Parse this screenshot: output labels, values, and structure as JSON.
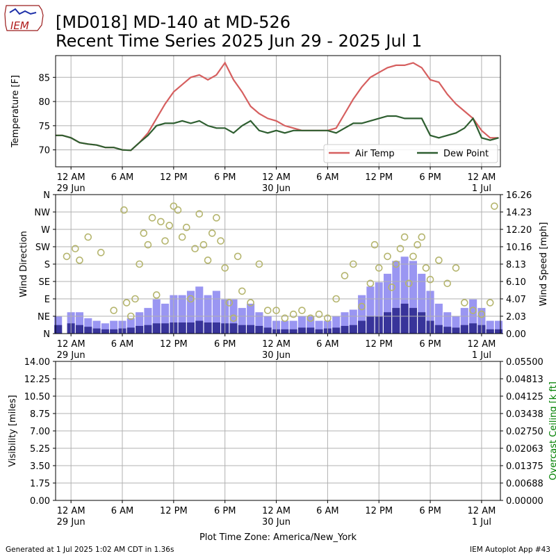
{
  "header": {
    "logo_text": "IEM",
    "title_line1": "[MD018] MD-140 at MD-526",
    "title_line2": "Recent Time Series 2025 Jun 29 - 2025 Jul 1"
  },
  "footer": {
    "generated": "Generated at 1 Jul 2025 1:02 AM CDT in 1.36s",
    "app": "IEM Autoplot App #43",
    "timezone_label": "Plot Time Zone: America/New_York"
  },
  "x_axis": {
    "range_hours": [
      -1.8,
      50.2
    ],
    "ticks": [
      {
        "h": 0,
        "label": "12 AM",
        "date": "29 Jun"
      },
      {
        "h": 6,
        "label": "6 AM",
        "date": ""
      },
      {
        "h": 12,
        "label": "12 PM",
        "date": ""
      },
      {
        "h": 18,
        "label": "6 PM",
        "date": ""
      },
      {
        "h": 24,
        "label": "12 AM",
        "date": "30 Jun"
      },
      {
        "h": 30,
        "label": "6 AM",
        "date": ""
      },
      {
        "h": 36,
        "label": "12 PM",
        "date": ""
      },
      {
        "h": 42,
        "label": "6 PM",
        "date": ""
      },
      {
        "h": 48,
        "label": "12 AM",
        "date": "1 Jul"
      }
    ]
  },
  "colors": {
    "air_temp": "#d65f5f",
    "dew_point": "#2e5e30",
    "wind_speed": "#9a96f2",
    "wind_gust": "#38349a",
    "wind_dir": "#b5b56e",
    "ceiling_label": "#008000",
    "grid": "#b0b0b0"
  },
  "chart_data": [
    {
      "type": "line",
      "ylabel": "Temperature [F]",
      "ylim": [
        66.5,
        89.5
      ],
      "yticks": [
        70,
        75,
        80,
        85
      ],
      "grid": true,
      "legend_position": "lower right",
      "series": [
        {
          "name": "Air Temp",
          "x": [
            -1.8,
            -1.0,
            0.0,
            1.0,
            2.0,
            3.0,
            4.0,
            5.0,
            6.0,
            7.0,
            8.0,
            9.0,
            10.0,
            11.0,
            12.0,
            13.0,
            14.0,
            15.0,
            16.0,
            17.0,
            18.0,
            19.0,
            20.0,
            21.0,
            22.0,
            23.0,
            24.0,
            25.0,
            26.0,
            27.0,
            28.0,
            29.0,
            30.0,
            31.0,
            32.0,
            33.0,
            34.0,
            35.0,
            36.0,
            37.0,
            38.0,
            39.0,
            40.0,
            41.0,
            42.0,
            43.0,
            44.0,
            45.0,
            46.0,
            47.0,
            48.0,
            49.0,
            50.0
          ],
          "y": [
            73.0,
            73.0,
            72.5,
            71.5,
            71.2,
            71.0,
            70.5,
            70.5,
            70.0,
            69.9,
            71.5,
            73.5,
            76.5,
            79.5,
            82.0,
            83.5,
            85.0,
            85.5,
            84.5,
            85.5,
            88.0,
            84.5,
            82.0,
            79.0,
            77.5,
            76.5,
            76.0,
            75.0,
            74.5,
            74.0,
            74.0,
            74.0,
            74.0,
            74.5,
            77.5,
            80.5,
            83.0,
            85.0,
            86.0,
            87.0,
            87.5,
            87.5,
            88.0,
            87.0,
            84.5,
            84.0,
            81.5,
            79.5,
            78.0,
            76.5,
            74.0,
            72.5,
            72.5
          ]
        },
        {
          "name": "Dew Point",
          "x": [
            -1.8,
            -1.0,
            0.0,
            1.0,
            2.0,
            3.0,
            4.0,
            5.0,
            6.0,
            7.0,
            8.0,
            9.0,
            10.0,
            11.0,
            12.0,
            13.0,
            14.0,
            15.0,
            16.0,
            17.0,
            18.0,
            19.0,
            20.0,
            21.0,
            22.0,
            23.0,
            24.0,
            25.0,
            26.0,
            27.0,
            28.0,
            29.0,
            30.0,
            31.0,
            32.0,
            33.0,
            34.0,
            35.0,
            36.0,
            37.0,
            38.0,
            39.0,
            40.0,
            41.0,
            42.0,
            43.0,
            44.0,
            45.0,
            46.0,
            47.0,
            48.0,
            49.0,
            50.0
          ],
          "y": [
            73.0,
            73.0,
            72.5,
            71.5,
            71.2,
            71.0,
            70.5,
            70.5,
            70.0,
            69.9,
            71.5,
            73.0,
            75.0,
            75.5,
            75.5,
            76.0,
            75.5,
            76.0,
            75.0,
            74.5,
            74.5,
            73.5,
            75.0,
            76.0,
            74.0,
            73.5,
            74.0,
            73.5,
            74.0,
            74.0,
            74.0,
            74.0,
            74.0,
            73.5,
            74.5,
            75.5,
            75.5,
            76.0,
            76.5,
            77.0,
            77.0,
            76.5,
            76.5,
            76.5,
            73.0,
            72.5,
            73.0,
            73.5,
            74.5,
            76.5,
            72.5,
            72.0,
            72.5
          ]
        }
      ]
    },
    {
      "type": "bar",
      "ylabel": "Wind Direction",
      "y2label": "Wind Speed [mph]",
      "ylim": [
        0,
        360
      ],
      "y2lim": [
        0,
        16.26
      ],
      "yticks": [
        {
          "v": 0,
          "label": "N"
        },
        {
          "v": 45,
          "label": "NE"
        },
        {
          "v": 90,
          "label": "E"
        },
        {
          "v": 135,
          "label": "SE"
        },
        {
          "v": 180,
          "label": "S"
        },
        {
          "v": 225,
          "label": "SW"
        },
        {
          "v": 270,
          "label": "W"
        },
        {
          "v": 315,
          "label": "NW"
        },
        {
          "v": 360,
          "label": "N"
        }
      ],
      "y2ticks": [
        "0.00",
        "2.03",
        "4.07",
        "6.10",
        "8.13",
        "10.16",
        "12.20",
        "14.23",
        "16.26"
      ],
      "grid": true,
      "series": [
        {
          "name": "Wind Speed",
          "x": [
            -1.5,
            0.0,
            1.0,
            2.0,
            3.0,
            4.0,
            5.0,
            6.0,
            7.0,
            8.0,
            9.0,
            10.0,
            11.0,
            12.0,
            13.0,
            14.0,
            15.0,
            16.0,
            17.0,
            18.0,
            19.0,
            20.0,
            21.0,
            22.0,
            23.0,
            24.0,
            25.0,
            26.0,
            27.0,
            28.0,
            29.0,
            30.0,
            31.0,
            32.0,
            33.0,
            34.0,
            35.0,
            36.0,
            37.0,
            38.0,
            39.0,
            40.0,
            41.0,
            42.0,
            43.0,
            44.0,
            45.0,
            46.0,
            47.0,
            48.0,
            49.0,
            50.0
          ],
          "y": [
            2.0,
            2.5,
            2.5,
            1.8,
            1.5,
            1.2,
            1.5,
            1.5,
            1.8,
            2.5,
            3.0,
            4.0,
            3.5,
            4.5,
            4.5,
            5.0,
            5.5,
            4.5,
            5.0,
            4.0,
            4.0,
            3.0,
            3.5,
            2.5,
            2.0,
            1.5,
            1.5,
            1.5,
            2.0,
            2.0,
            1.5,
            1.5,
            2.0,
            2.5,
            2.8,
            4.5,
            5.5,
            6.0,
            7.0,
            8.5,
            9.0,
            8.5,
            7.0,
            5.0,
            3.5,
            2.5,
            2.0,
            3.0,
            4.0,
            3.0,
            1.5,
            1.5
          ]
        },
        {
          "name": "Wind Gust",
          "x": [
            -1.5,
            0.0,
            1.0,
            2.0,
            3.0,
            4.0,
            5.0,
            6.0,
            7.0,
            8.0,
            9.0,
            10.0,
            11.0,
            12.0,
            13.0,
            14.0,
            15.0,
            16.0,
            17.0,
            18.0,
            19.0,
            20.0,
            21.0,
            22.0,
            23.0,
            24.0,
            25.0,
            26.0,
            27.0,
            28.0,
            29.0,
            30.0,
            31.0,
            32.0,
            33.0,
            34.0,
            35.0,
            36.0,
            37.0,
            38.0,
            39.0,
            40.0,
            41.0,
            42.0,
            43.0,
            44.0,
            45.0,
            46.0,
            47.0,
            48.0,
            49.0,
            50.0
          ],
          "y": [
            1.0,
            1.2,
            1.0,
            0.8,
            0.6,
            0.5,
            0.5,
            0.6,
            0.7,
            0.9,
            1.0,
            1.2,
            1.2,
            1.3,
            1.3,
            1.3,
            1.5,
            1.3,
            1.3,
            1.2,
            1.2,
            1.0,
            1.0,
            0.9,
            0.7,
            0.5,
            0.5,
            0.5,
            0.7,
            0.7,
            0.5,
            0.6,
            0.7,
            0.9,
            1.0,
            1.5,
            2.0,
            2.0,
            2.5,
            3.0,
            3.5,
            3.0,
            2.5,
            1.5,
            1.0,
            0.8,
            0.7,
            1.0,
            1.2,
            1.0,
            0.5,
            0.5
          ]
        },
        {
          "name": "Wind Direction",
          "type": "scatter",
          "x": [
            -0.5,
            0.5,
            1.0,
            2.0,
            3.5,
            5.0,
            6.2,
            6.5,
            7.0,
            7.5,
            8.0,
            8.5,
            9.0,
            9.5,
            10.0,
            10.5,
            11.0,
            11.5,
            12.0,
            12.5,
            13.0,
            13.5,
            14.0,
            14.5,
            15.0,
            15.5,
            16.0,
            16.5,
            17.0,
            17.5,
            18.0,
            18.5,
            19.0,
            19.5,
            20.0,
            21.0,
            22.0,
            23.0,
            24.0,
            25.0,
            26.0,
            27.0,
            28.0,
            29.0,
            30.0,
            31.0,
            32.0,
            33.0,
            34.0,
            35.0,
            35.5,
            36.0,
            37.0,
            37.5,
            38.0,
            38.5,
            39.0,
            39.5,
            40.0,
            40.5,
            41.0,
            41.5,
            42.0,
            43.0,
            44.0,
            45.0,
            46.0,
            47.0,
            48.0,
            49.0,
            49.5
          ],
          "y": [
            200,
            220,
            190,
            250,
            210,
            60,
            320,
            80,
            45,
            90,
            180,
            260,
            230,
            300,
            100,
            290,
            240,
            280,
            330,
            320,
            250,
            275,
            90,
            220,
            310,
            230,
            190,
            260,
            300,
            240,
            170,
            80,
            40,
            200,
            110,
            80,
            180,
            60,
            60,
            40,
            50,
            60,
            40,
            50,
            40,
            90,
            150,
            180,
            70,
            130,
            230,
            170,
            200,
            120,
            180,
            220,
            250,
            130,
            200,
            230,
            250,
            170,
            140,
            190,
            130,
            170,
            80,
            60,
            50,
            80,
            330
          ]
        }
      ]
    },
    {
      "type": "line",
      "ylabel": "Visibility [miles]",
      "y2label": "Overcast Ceiling [k ft]",
      "ylim": [
        0,
        14
      ],
      "y2lim": [
        0,
        0.055
      ],
      "yticks": [
        "0.00",
        "1.75",
        "3.50",
        "5.25",
        "7.00",
        "8.75",
        "10.50",
        "12.25",
        "14.00"
      ],
      "y2ticks": [
        "0.00000",
        "0.00688",
        "0.01375",
        "0.02063",
        "0.02750",
        "0.03438",
        "0.04125",
        "0.04813",
        "0.05500"
      ],
      "grid": true,
      "series": []
    }
  ]
}
